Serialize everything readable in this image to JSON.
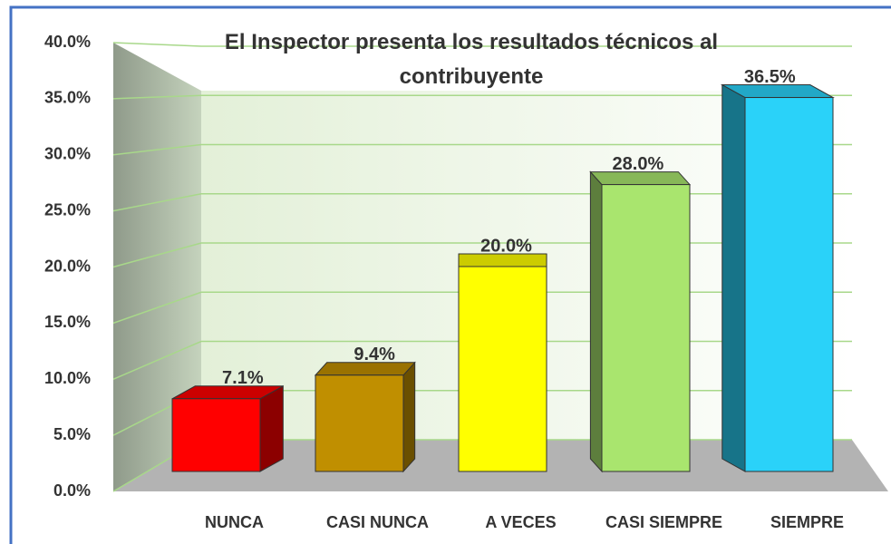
{
  "chart_data": {
    "type": "bar3d",
    "title": "El Inspector presenta los resultados técnicos al contribuyente",
    "categories": [
      "NUNCA",
      "CASI NUNCA",
      "A VECES",
      "CASI SIEMPRE",
      "SIEMPRE"
    ],
    "values": [
      7.1,
      9.4,
      20.0,
      28.0,
      36.5
    ],
    "value_labels": [
      "7.1%",
      "9.4%",
      "20.0%",
      "28.0%",
      "36.5%"
    ],
    "colors": [
      "#ff0000",
      "#c08f00",
      "#ffff00",
      "#a9e56e",
      "#2ad2f9"
    ],
    "ylim": [
      0,
      40
    ],
    "yticks": [
      {
        "value": 0,
        "label": "0.0%"
      },
      {
        "value": 5,
        "label": "5.0%"
      },
      {
        "value": 10,
        "label": "10.0%"
      },
      {
        "value": 15,
        "label": "15.0%"
      },
      {
        "value": 20,
        "label": "20.0%"
      },
      {
        "value": 25,
        "label": "25.0%"
      },
      {
        "value": 30,
        "label": "30.0%"
      },
      {
        "value": 35,
        "label": "35.0%"
      },
      {
        "value": 40,
        "label": "40.0%"
      }
    ],
    "grid": true
  }
}
